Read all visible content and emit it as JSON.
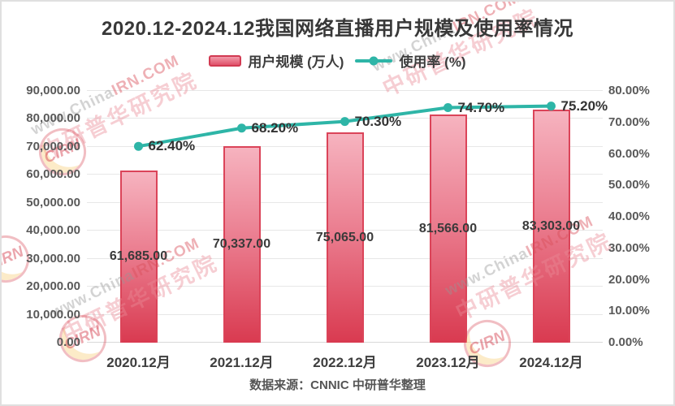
{
  "title": "2020.12-2024.12我国网络直播用户规模及使用率情况",
  "legend": {
    "bar_label": "用户规模 (万人)",
    "line_label": "使用率 (%)"
  },
  "footer": "数据来源：CNNIC 中研普华整理",
  "watermark": {
    "url_gray": "www.China",
    "url_red": "IRN.COM",
    "cn": "中研普华研究院",
    "logo": "CIRN"
  },
  "colors": {
    "bar_top": "#f6b3bf",
    "bar_bottom": "#d93a50",
    "bar_border": "#db4459",
    "line": "#2eb5a7",
    "grid": "#e7e7e7",
    "title_text": "#383838",
    "axis_text": "#595959"
  },
  "chart_data": {
    "type": "bar",
    "subtype": "bar+line dual axis",
    "title": "2020.12-2024.12我国网络直播用户规模及使用率情况",
    "categories": [
      "2020.12月",
      "2021.12月",
      "2022.12月",
      "2023.12月",
      "2024.12月"
    ],
    "series": [
      {
        "name": "用户规模 (万人)",
        "type": "bar",
        "axis": "left",
        "values": [
          61685,
          70337,
          75065,
          81566,
          83303
        ],
        "value_labels": [
          "61,685.00",
          "70,337.00",
          "75,065.00",
          "81,566.00",
          "83,303.00"
        ]
      },
      {
        "name": "使用率 (%)",
        "type": "line",
        "axis": "right",
        "values": [
          62.4,
          68.2,
          70.3,
          74.7,
          75.2
        ],
        "value_labels": [
          "62.40%",
          "68.20%",
          "70.30%",
          "74.70%",
          "75.20%"
        ]
      }
    ],
    "left_axis": {
      "min": 0,
      "max": 90000,
      "step": 10000,
      "tick_labels": [
        "0.00",
        "10,000.00",
        "20,000.00",
        "30,000.00",
        "40,000.00",
        "50,000.00",
        "60,000.00",
        "70,000.00",
        "80,000.00",
        "90,000.00"
      ]
    },
    "right_axis": {
      "min": 0,
      "max": 80,
      "step": 10,
      "tick_labels": [
        "0.00%",
        "10.00%",
        "20.00%",
        "30.00%",
        "40.00%",
        "50.00%",
        "60.00%",
        "70.00%",
        "80.00%"
      ]
    },
    "grid": "horizontal",
    "legend_position": "top",
    "source_note": "数据来源：CNNIC 中研普华整理"
  }
}
